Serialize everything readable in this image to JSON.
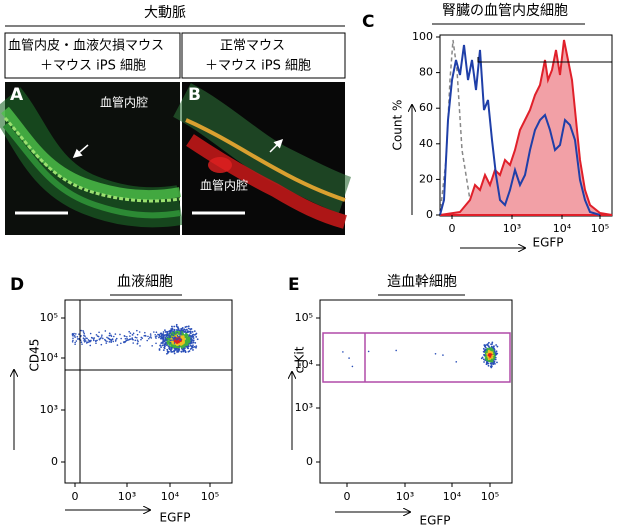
{
  "figure_title": "大動脈",
  "panel_a": {
    "label": "A",
    "header": [
      "血管内皮・血液欠損マウス",
      "＋マウス iPS 細胞"
    ],
    "lumen": "血管内腔"
  },
  "panel_b": {
    "label": "B",
    "header": [
      "正常マウス",
      "＋マウス iPS 細胞"
    ],
    "lumen": "血管内腔"
  },
  "panel_c": {
    "label": "C",
    "title": "腎臓の血管内皮細胞",
    "y_axis": "Count %",
    "x_axis": "EGFP",
    "y_ticks": [
      "0",
      "20",
      "40",
      "60",
      "80",
      "100"
    ],
    "x_ticks": [
      "0",
      "10³",
      "10⁴",
      "10⁵"
    ]
  },
  "panel_d": {
    "label": "D",
    "title": "血液細胞",
    "y_axis": "CD45",
    "x_axis": "EGFP",
    "y_ticks": [
      "10⁵",
      "10⁴",
      "10³",
      "0"
    ],
    "x_ticks": [
      "0",
      "10³",
      "10⁴",
      "10⁵"
    ]
  },
  "panel_e": {
    "label": "E",
    "title": "造血幹細胞",
    "y_axis": "c-Kit",
    "x_axis": "EGFP",
    "y_ticks": [
      "10⁵",
      "10⁴",
      "10³",
      "0"
    ],
    "x_ticks": [
      "0",
      "10³",
      "10⁴",
      "10⁵"
    ]
  }
}
